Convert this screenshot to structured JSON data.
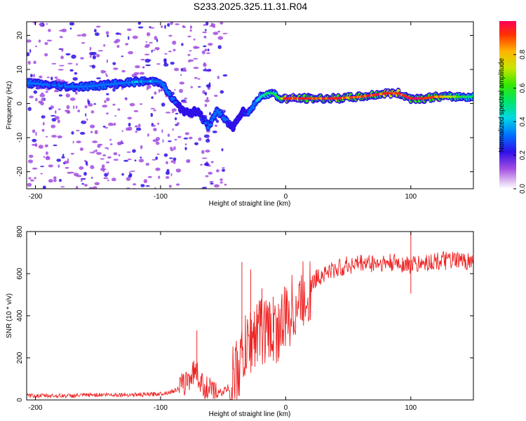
{
  "title": "S233.2025.325.11.31.R04",
  "chart_data": [
    {
      "type": "heatmap",
      "name": "spectrogram",
      "xlabel": "Height of straight line (km)",
      "ylabel": "Frequency (Hz)",
      "xlim": [
        -207,
        150
      ],
      "ylim": [
        -25,
        24
      ],
      "xticks": [
        -200,
        -100,
        0,
        100
      ],
      "yticks": [
        -20,
        -10,
        0,
        10,
        20
      ],
      "colorbar": {
        "label": "Normalized spectral amplitude",
        "range": [
          0,
          1
        ],
        "ticks": [
          "0.0",
          "0.2",
          "0.4",
          "0.6",
          "0.8"
        ]
      },
      "ridge": {
        "x": [
          -205,
          -190,
          -175,
          -160,
          -145,
          -130,
          -115,
          -100,
          -92,
          -85,
          -78,
          -70,
          -62,
          -55,
          -48,
          -42,
          -38,
          -34,
          -30,
          -25,
          -20,
          -15,
          -10,
          -5,
          0,
          10,
          20,
          40,
          60,
          80,
          90,
          100,
          110,
          120,
          140,
          150
        ],
        "freq": [
          6,
          5.5,
          5,
          5,
          5.5,
          6,
          6.5,
          6.5,
          2,
          -1,
          -3,
          -2,
          -7,
          -2,
          -5,
          -7,
          -4,
          -2,
          -3,
          0,
          2,
          3,
          3,
          1.5,
          1.5,
          1.5,
          1.5,
          1.5,
          2,
          3,
          3,
          1.5,
          1.5,
          2,
          2,
          2
        ],
        "amp": [
          0.3,
          0.25,
          0.25,
          0.3,
          0.3,
          0.3,
          0.35,
          0.3,
          0.25,
          0.2,
          0.2,
          0.2,
          0.25,
          0.25,
          0.25,
          0.2,
          0.2,
          0.2,
          0.25,
          0.3,
          0.4,
          0.5,
          0.5,
          0.55,
          0.95,
          0.95,
          0.9,
          0.95,
          0.9,
          0.95,
          0.95,
          0.9,
          0.95,
          0.9,
          0.55,
          0.5
        ]
      }
    },
    {
      "type": "line",
      "name": "snr",
      "xlabel": "Height of straight line (km)",
      "ylabel": "SNR (10 * v/v)",
      "xlim": [
        -207,
        150
      ],
      "ylim": [
        0,
        800
      ],
      "xticks": [
        -200,
        -100,
        0,
        100
      ],
      "yticks": [
        0,
        200,
        400,
        600,
        800
      ],
      "color": "#ee2222",
      "x": [
        -207,
        -190,
        -170,
        -150,
        -130,
        -110,
        -100,
        -90,
        -82,
        -75,
        -72,
        -68,
        -62,
        -55,
        -50,
        -45,
        -40,
        -35,
        -30,
        -25,
        -20,
        -15,
        -10,
        -5,
        0,
        5,
        10,
        15,
        20,
        25,
        30,
        40,
        50,
        60,
        70,
        80,
        90,
        100,
        110,
        120,
        130,
        140,
        150
      ],
      "y": [
        20,
        20,
        20,
        25,
        25,
        25,
        30,
        40,
        70,
        120,
        150,
        80,
        50,
        30,
        40,
        60,
        120,
        200,
        260,
        310,
        340,
        330,
        320,
        340,
        380,
        430,
        460,
        500,
        540,
        580,
        600,
        620,
        640,
        650,
        650,
        650,
        650,
        640,
        650,
        660,
        660,
        660,
        660
      ],
      "spikes": [
        {
          "x": -71,
          "y": 330
        },
        {
          "x": -35,
          "y": 655
        },
        {
          "x": -28,
          "y": 620
        },
        {
          "x": -19,
          "y": 530
        },
        {
          "x": -10,
          "y": 490
        },
        {
          "x": 100,
          "y": 805
        },
        {
          "x": 100,
          "y": 505
        }
      ]
    }
  ]
}
